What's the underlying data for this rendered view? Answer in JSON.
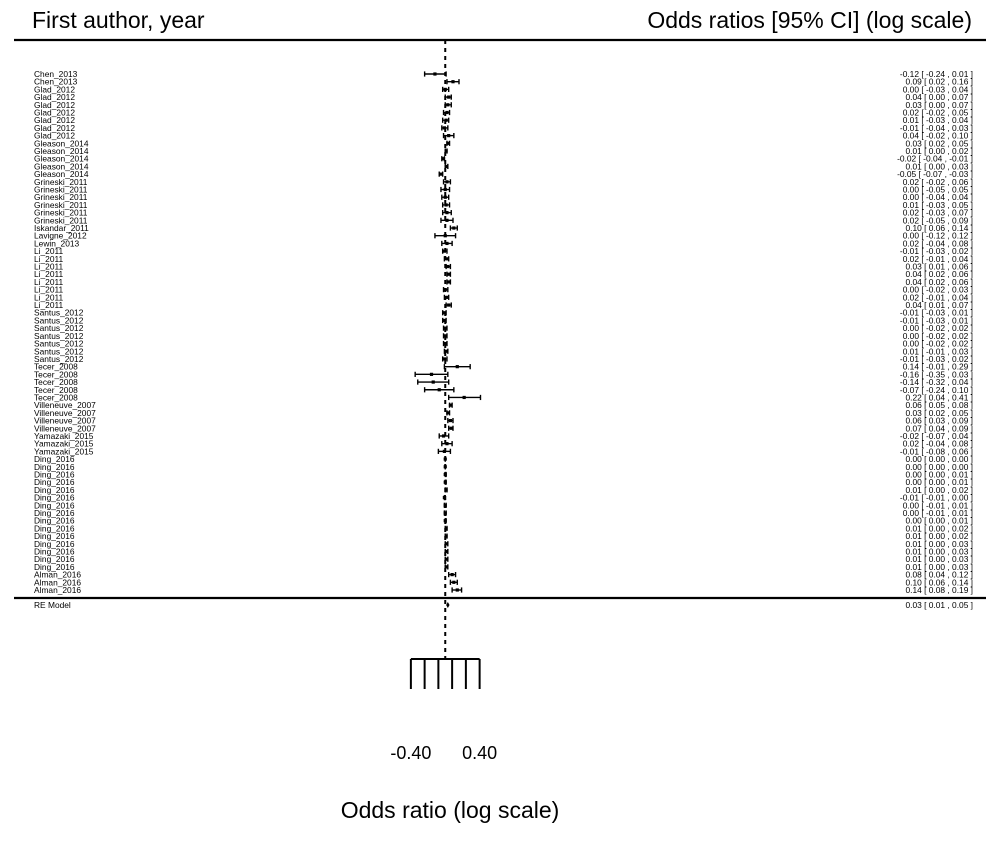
{
  "chart_data": {
    "type": "forest",
    "header_left": "First author, year",
    "header_right": "Odds ratios [95% CI] (log scale)",
    "xlabel": "Odds ratio (log scale)",
    "xlim": [
      -0.48,
      0.8
    ],
    "ticks": [
      -0.4,
      -0.24,
      -0.08,
      0.08,
      0.24,
      0.4
    ],
    "tick_labels": [
      {
        "value": -0.4,
        "label": "-0.40"
      },
      {
        "value": 0.4,
        "label": "0.40"
      }
    ],
    "reference_line": 0,
    "studies": [
      {
        "label": "Chen_2013",
        "est": -0.12,
        "lo": -0.24,
        "hi": 0.01,
        "text": "-0.12 [ -0.24 ,  0.01 ]"
      },
      {
        "label": "Chen_2013",
        "est": 0.09,
        "lo": 0.02,
        "hi": 0.16,
        "text": "0.09 [  0.02 ,  0.16 ]"
      },
      {
        "label": "Glad_2012",
        "est": 0.0,
        "lo": -0.03,
        "hi": 0.04,
        "text": "0.00 [ -0.03 ,  0.04 ]"
      },
      {
        "label": "Glad_2012",
        "est": 0.04,
        "lo": 0.0,
        "hi": 0.07,
        "text": "0.04 [  0.00 ,  0.07 ]"
      },
      {
        "label": "Glad_2012",
        "est": 0.03,
        "lo": 0.0,
        "hi": 0.07,
        "text": "0.03 [  0.00 ,  0.07 ]"
      },
      {
        "label": "Glad_2012",
        "est": 0.02,
        "lo": -0.02,
        "hi": 0.05,
        "text": "0.02 [ -0.02 ,  0.05 ]"
      },
      {
        "label": "Glad_2012",
        "est": 0.01,
        "lo": -0.03,
        "hi": 0.04,
        "text": "0.01 [ -0.03 ,  0.04 ]"
      },
      {
        "label": "Glad_2012",
        "est": -0.01,
        "lo": -0.04,
        "hi": 0.03,
        "text": "-0.01 [ -0.04 ,  0.03 ]"
      },
      {
        "label": "Glad_2012",
        "est": 0.04,
        "lo": -0.02,
        "hi": 0.1,
        "text": "0.04 [ -0.02 ,  0.10 ]"
      },
      {
        "label": "Gleason_2014",
        "est": 0.03,
        "lo": 0.02,
        "hi": 0.05,
        "text": "0.03 [  0.02 ,  0.05 ]"
      },
      {
        "label": "Gleason_2014",
        "est": 0.01,
        "lo": 0.0,
        "hi": 0.02,
        "text": "0.01 [  0.00 ,  0.02 ]"
      },
      {
        "label": "Gleason_2014",
        "est": -0.02,
        "lo": -0.04,
        "hi": -0.01,
        "text": "-0.02 [ -0.04 , -0.01 ]"
      },
      {
        "label": "Gleason_2014",
        "est": 0.01,
        "lo": 0.0,
        "hi": 0.03,
        "text": "0.01 [  0.00 ,  0.03 ]"
      },
      {
        "label": "Gleason_2014",
        "est": -0.05,
        "lo": -0.07,
        "hi": -0.03,
        "text": "-0.05 [ -0.07 , -0.03 ]"
      },
      {
        "label": "Grineski_2011",
        "est": 0.02,
        "lo": -0.02,
        "hi": 0.06,
        "text": "0.02 [ -0.02 ,  0.06 ]"
      },
      {
        "label": "Grineski_2011",
        "est": 0.0,
        "lo": -0.05,
        "hi": 0.05,
        "text": "0.00 [ -0.05 ,  0.05 ]"
      },
      {
        "label": "Grineski_2011",
        "est": 0.0,
        "lo": -0.04,
        "hi": 0.04,
        "text": "0.00 [ -0.04 ,  0.04 ]"
      },
      {
        "label": "Grineski_2011",
        "est": 0.01,
        "lo": -0.03,
        "hi": 0.05,
        "text": "0.01 [ -0.03 ,  0.05 ]"
      },
      {
        "label": "Grineski_2011",
        "est": 0.02,
        "lo": -0.03,
        "hi": 0.07,
        "text": "0.02 [ -0.03 ,  0.07 ]"
      },
      {
        "label": "Grineski_2011",
        "est": 0.02,
        "lo": -0.05,
        "hi": 0.09,
        "text": "0.02 [ -0.05 ,  0.09 ]"
      },
      {
        "label": "Iskandar_2011",
        "est": 0.1,
        "lo": 0.06,
        "hi": 0.14,
        "text": "0.10 [  0.06 ,  0.14 ]"
      },
      {
        "label": "Lavigne_2012",
        "est": 0.0,
        "lo": -0.12,
        "hi": 0.12,
        "text": "0.00 [ -0.12 ,  0.12 ]"
      },
      {
        "label": "Lewin_2013",
        "est": 0.02,
        "lo": -0.04,
        "hi": 0.08,
        "text": "0.02 [ -0.04 ,  0.08 ]"
      },
      {
        "label": "Li_2011",
        "est": -0.01,
        "lo": -0.03,
        "hi": 0.02,
        "text": "-0.01 [ -0.03 ,  0.02 ]"
      },
      {
        "label": "Li_2011",
        "est": 0.02,
        "lo": -0.01,
        "hi": 0.04,
        "text": "0.02 [ -0.01 ,  0.04 ]"
      },
      {
        "label": "Li_2011",
        "est": 0.03,
        "lo": 0.01,
        "hi": 0.06,
        "text": "0.03 [  0.01 ,  0.06 ]"
      },
      {
        "label": "Li_2011",
        "est": 0.04,
        "lo": 0.02,
        "hi": 0.06,
        "text": "0.04 [  0.02 ,  0.06 ]"
      },
      {
        "label": "Li_2011",
        "est": 0.04,
        "lo": 0.02,
        "hi": 0.06,
        "text": "0.04 [  0.02 ,  0.06 ]"
      },
      {
        "label": "Li_2011",
        "est": 0.0,
        "lo": -0.02,
        "hi": 0.03,
        "text": "0.00 [ -0.02 ,  0.03 ]"
      },
      {
        "label": "Li_2011",
        "est": 0.02,
        "lo": -0.01,
        "hi": 0.04,
        "text": "0.02 [ -0.01 ,  0.04 ]"
      },
      {
        "label": "Li_2011",
        "est": 0.04,
        "lo": 0.01,
        "hi": 0.07,
        "text": "0.04 [  0.01 ,  0.07 ]"
      },
      {
        "label": "Santus_2012",
        "est": -0.01,
        "lo": -0.03,
        "hi": 0.01,
        "text": "-0.01 [ -0.03 ,  0.01 ]"
      },
      {
        "label": "Santus_2012",
        "est": -0.01,
        "lo": -0.03,
        "hi": 0.01,
        "text": "-0.01 [ -0.03 ,  0.01 ]"
      },
      {
        "label": "Santus_2012",
        "est": 0.0,
        "lo": -0.02,
        "hi": 0.02,
        "text": "0.00 [ -0.02 ,  0.02 ]"
      },
      {
        "label": "Santus_2012",
        "est": 0.0,
        "lo": -0.02,
        "hi": 0.02,
        "text": "0.00 [ -0.02 ,  0.02 ]"
      },
      {
        "label": "Santus_2012",
        "est": 0.0,
        "lo": -0.02,
        "hi": 0.02,
        "text": "0.00 [ -0.02 ,  0.02 ]"
      },
      {
        "label": "Santus_2012",
        "est": 0.01,
        "lo": -0.01,
        "hi": 0.03,
        "text": "0.01 [ -0.01 ,  0.03 ]"
      },
      {
        "label": "Santus_2012",
        "est": -0.01,
        "lo": -0.03,
        "hi": 0.02,
        "text": "-0.01 [ -0.03 ,  0.02 ]"
      },
      {
        "label": "Tecer_2008",
        "est": 0.14,
        "lo": -0.01,
        "hi": 0.29,
        "text": "0.14 [ -0.01 ,  0.29 ]"
      },
      {
        "label": "Tecer_2008",
        "est": -0.16,
        "lo": -0.35,
        "hi": 0.03,
        "text": "-0.16 [ -0.35 ,  0.03 ]"
      },
      {
        "label": "Tecer_2008",
        "est": -0.14,
        "lo": -0.32,
        "hi": 0.04,
        "text": "-0.14 [ -0.32 ,  0.04 ]"
      },
      {
        "label": "Tecer_2008",
        "est": -0.07,
        "lo": -0.24,
        "hi": 0.1,
        "text": "-0.07 [ -0.24 ,  0.10 ]"
      },
      {
        "label": "Tecer_2008",
        "est": 0.22,
        "lo": 0.04,
        "hi": 0.41,
        "text": "0.22 [  0.04 ,  0.41 ]"
      },
      {
        "label": "Villeneuve_2007",
        "est": 0.06,
        "lo": 0.05,
        "hi": 0.08,
        "text": "0.06 [  0.05 ,  0.08 ]"
      },
      {
        "label": "Villeneuve_2007",
        "est": 0.03,
        "lo": 0.02,
        "hi": 0.05,
        "text": "0.03 [  0.02 ,  0.05 ]"
      },
      {
        "label": "Villeneuve_2007",
        "est": 0.06,
        "lo": 0.03,
        "hi": 0.09,
        "text": "0.06 [  0.03 ,  0.09 ]"
      },
      {
        "label": "Villeneuve_2007",
        "est": 0.07,
        "lo": 0.04,
        "hi": 0.09,
        "text": "0.07 [  0.04 ,  0.09 ]"
      },
      {
        "label": "Yamazaki_2015",
        "est": -0.02,
        "lo": -0.07,
        "hi": 0.04,
        "text": "-0.02 [ -0.07 ,  0.04 ]"
      },
      {
        "label": "Yamazaki_2015",
        "est": 0.02,
        "lo": -0.04,
        "hi": 0.08,
        "text": "0.02 [ -0.04 ,  0.08 ]"
      },
      {
        "label": "Yamazaki_2015",
        "est": -0.01,
        "lo": -0.08,
        "hi": 0.06,
        "text": "-0.01 [ -0.08 ,  0.06 ]"
      },
      {
        "label": "Ding_2016",
        "est": 0.0,
        "lo": 0.0,
        "hi": 0.0,
        "text": "0.00 [  0.00 ,  0.00 ]"
      },
      {
        "label": "Ding_2016",
        "est": 0.0,
        "lo": 0.0,
        "hi": 0.0,
        "text": "0.00 [  0.00 ,  0.00 ]"
      },
      {
        "label": "Ding_2016",
        "est": 0.0,
        "lo": 0.0,
        "hi": 0.01,
        "text": "0.00 [  0.00 ,  0.01 ]"
      },
      {
        "label": "Ding_2016",
        "est": 0.0,
        "lo": 0.0,
        "hi": 0.01,
        "text": "0.00 [  0.00 ,  0.01 ]"
      },
      {
        "label": "Ding_2016",
        "est": 0.01,
        "lo": 0.0,
        "hi": 0.02,
        "text": "0.01 [  0.00 ,  0.02 ]"
      },
      {
        "label": "Ding_2016",
        "est": -0.01,
        "lo": -0.01,
        "hi": 0.0,
        "text": "-0.01 [ -0.01 ,  0.00 ]"
      },
      {
        "label": "Ding_2016",
        "est": 0.0,
        "lo": -0.01,
        "hi": 0.01,
        "text": "0.00 [ -0.01 ,  0.01 ]"
      },
      {
        "label": "Ding_2016",
        "est": 0.0,
        "lo": -0.01,
        "hi": 0.01,
        "text": "0.00 [ -0.01 ,  0.01 ]"
      },
      {
        "label": "Ding_2016",
        "est": 0.0,
        "lo": 0.0,
        "hi": 0.01,
        "text": "0.00 [  0.00 ,  0.01 ]"
      },
      {
        "label": "Ding_2016",
        "est": 0.01,
        "lo": 0.0,
        "hi": 0.02,
        "text": "0.01 [  0.00 ,  0.02 ]"
      },
      {
        "label": "Ding_2016",
        "est": 0.01,
        "lo": 0.0,
        "hi": 0.02,
        "text": "0.01 [  0.00 ,  0.02 ]"
      },
      {
        "label": "Ding_2016",
        "est": 0.01,
        "lo": 0.0,
        "hi": 0.03,
        "text": "0.01 [  0.00 ,  0.03 ]"
      },
      {
        "label": "Ding_2016",
        "est": 0.01,
        "lo": 0.0,
        "hi": 0.03,
        "text": "0.01 [  0.00 ,  0.03 ]"
      },
      {
        "label": "Ding_2016",
        "est": 0.01,
        "lo": 0.0,
        "hi": 0.03,
        "text": "0.01 [  0.00 ,  0.03 ]"
      },
      {
        "label": "Ding_2016",
        "est": 0.01,
        "lo": 0.0,
        "hi": 0.03,
        "text": "0.01 [  0.00 ,  0.03 ]"
      },
      {
        "label": "Alman_2016",
        "est": 0.08,
        "lo": 0.04,
        "hi": 0.12,
        "text": "0.08 [  0.04 ,  0.12 ]"
      },
      {
        "label": "Alman_2016",
        "est": 0.1,
        "lo": 0.06,
        "hi": 0.14,
        "text": "0.10 [  0.06 ,  0.14 ]"
      },
      {
        "label": "Alman_2016",
        "est": 0.14,
        "lo": 0.08,
        "hi": 0.19,
        "text": "0.14 [  0.08 ,  0.19 ]"
      }
    ],
    "summary": {
      "label": "RE Model",
      "est": 0.03,
      "lo": 0.01,
      "hi": 0.05,
      "text": "0.03 [  0.01 ,  0.05 ]"
    }
  }
}
